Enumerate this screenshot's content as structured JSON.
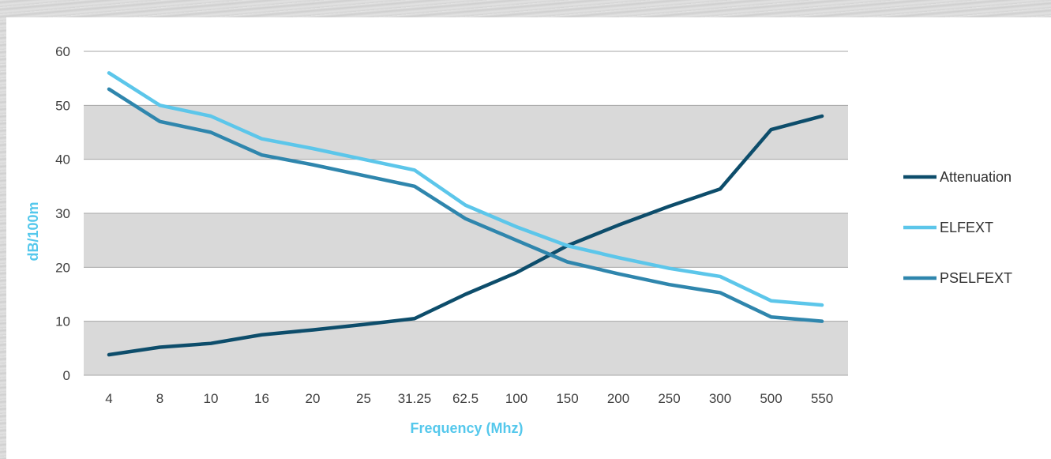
{
  "chart_data": {
    "type": "line",
    "title": "",
    "xlabel": "Frequency (Mhz)",
    "ylabel": "dB/100m",
    "ylim": [
      0,
      60
    ],
    "yticks": [
      0,
      10,
      20,
      30,
      40,
      50,
      60
    ],
    "grid": "alternating horizontal bands",
    "legend": "right",
    "categories": [
      "4",
      "8",
      "10",
      "16",
      "20",
      "25",
      "31.25",
      "62.5",
      "100",
      "150",
      "200",
      "250",
      "300",
      "500",
      "550"
    ],
    "series": [
      {
        "name": "Attenuation",
        "color": "#0d4d6b",
        "values": [
          3.8,
          5.2,
          5.9,
          7.5,
          8.4,
          9.4,
          10.5,
          15.0,
          19.0,
          24.0,
          27.8,
          31.3,
          34.5,
          45.5,
          48.0
        ]
      },
      {
        "name": "ELFEXT",
        "color": "#5cc6ea",
        "values": [
          56.0,
          50.0,
          48.0,
          43.8,
          42.0,
          40.0,
          38.0,
          31.5,
          27.5,
          24.0,
          21.8,
          19.8,
          18.3,
          13.8,
          13.0
        ]
      },
      {
        "name": "PSELFEXT",
        "color": "#2f86ad",
        "values": [
          53.0,
          47.0,
          45.0,
          40.8,
          39.0,
          37.0,
          35.0,
          29.0,
          25.0,
          21.0,
          18.8,
          16.8,
          15.3,
          10.8,
          10.0
        ]
      }
    ]
  }
}
